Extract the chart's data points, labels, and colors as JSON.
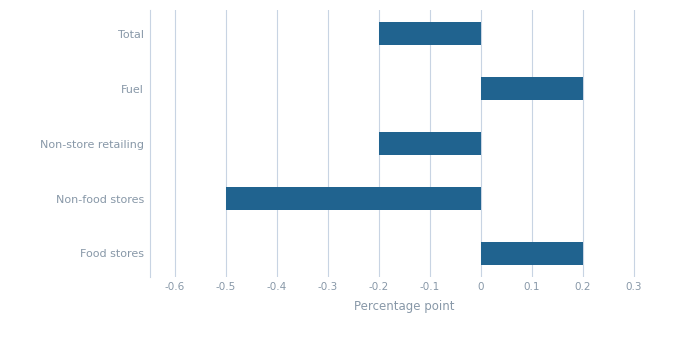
{
  "categories": [
    "Food stores",
    "Non-food stores",
    "Non-store retailing",
    "Fuel",
    "Total"
  ],
  "values": [
    0.2,
    -0.5,
    -0.2,
    0.2,
    -0.2
  ],
  "bar_color": "#20638f",
  "xlabel": "Percentage point",
  "xlim": [
    -0.65,
    0.35
  ],
  "xticks": [
    -0.6,
    -0.5,
    -0.4,
    -0.3,
    -0.2,
    -0.1,
    0.0,
    0.1,
    0.2,
    0.3
  ],
  "xtick_labels": [
    "-0.6",
    "-0.5",
    "-0.4",
    "-0.3",
    "-0.2",
    "-0.1",
    "0",
    "0.1",
    "0.2",
    "0.3"
  ],
  "background_color": "#ffffff",
  "grid_color": "#c8d4e3",
  "tick_label_color": "#8898a8",
  "xlabel_color": "#8898a8",
  "bar_height": 0.42,
  "figsize": [
    6.8,
    3.38
  ],
  "dpi": 100
}
